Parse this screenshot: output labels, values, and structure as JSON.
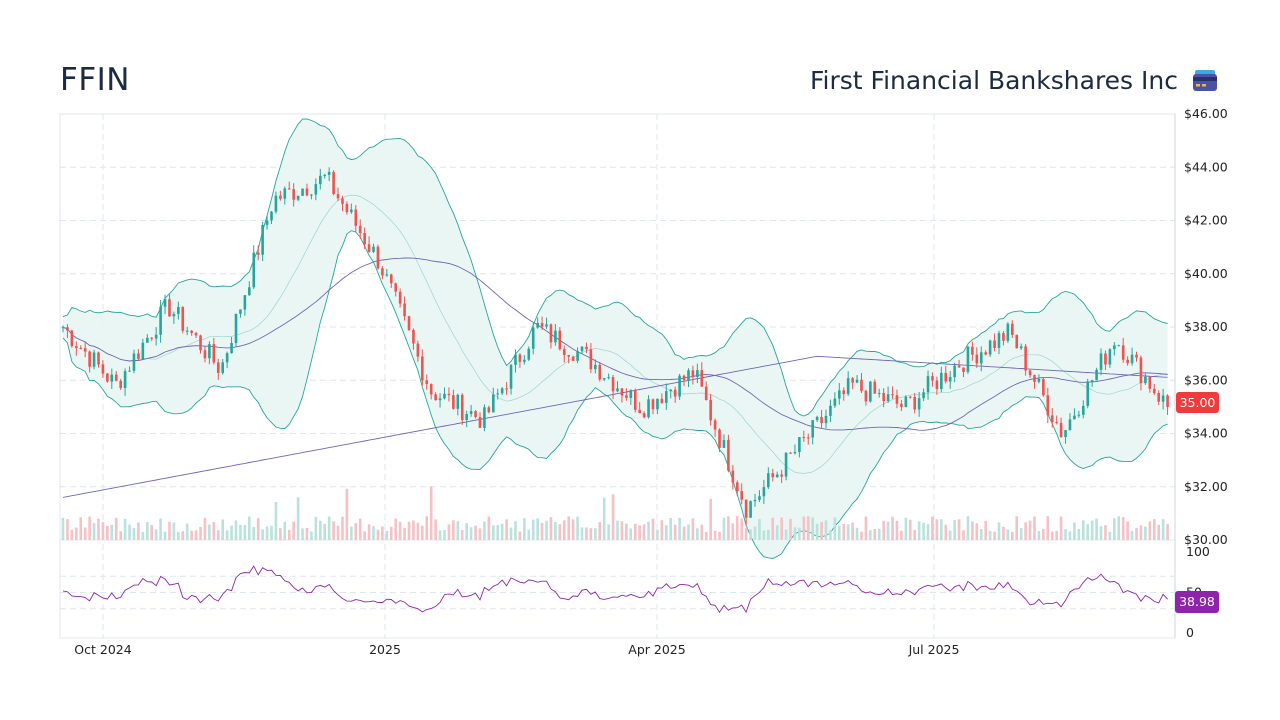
{
  "header": {
    "ticker": "FFIN",
    "company": "First Financial Bankshares Inc",
    "logo_icon": "credit-card-icon"
  },
  "colors": {
    "up": "#26a69a",
    "down": "#ef5350",
    "band_fill": "#e8f5f3",
    "band_line": "#26a69a",
    "ma_line": "#6f66b8",
    "rsi_line": "#8e24aa",
    "last_price_badge": "#ef3b3b",
    "rsi_badge": "#8e24aa"
  },
  "chart_data": [
    {
      "type": "candlestick",
      "title": "",
      "x_tick_labels": [
        "Oct 2024",
        "2025",
        "Apr 2025",
        "Jul 2025"
      ],
      "y_tick_labels": [
        "$46.00",
        "$44.00",
        "$42.00",
        "$40.00",
        "$38.00",
        "$36.00",
        "$34.00",
        "$32.00",
        "$30.00"
      ],
      "ylim": [
        30,
        46
      ],
      "grid": true,
      "last_price": "35.00",
      "series_summary": [
        {
          "date": "2024-09",
          "close": 38.0
        },
        {
          "date": "2024-10",
          "close": 35.8
        },
        {
          "date": "2024-10-15",
          "close": 38.8
        },
        {
          "date": "2024-10-25",
          "close": 36.4
        },
        {
          "date": "2024-11-06",
          "close": 42.8
        },
        {
          "date": "2024-11-25",
          "close": 43.6
        },
        {
          "date": "2024-12-10",
          "close": 40.5
        },
        {
          "date": "2024-12-20",
          "close": 35.6
        },
        {
          "date": "2025-01-10",
          "close": 34.5
        },
        {
          "date": "2025-01-31",
          "close": 38.0
        },
        {
          "date": "2025-02-20",
          "close": 36.8
        },
        {
          "date": "2025-03-10",
          "close": 35.0
        },
        {
          "date": "2025-03-28",
          "close": 36.3
        },
        {
          "date": "2025-04-08",
          "close": 31.2
        },
        {
          "date": "2025-04-25",
          "close": 33.5
        },
        {
          "date": "2025-05-15",
          "close": 35.8
        },
        {
          "date": "2025-06-05",
          "close": 35.0
        },
        {
          "date": "2025-06-25",
          "close": 36.6
        },
        {
          "date": "2025-07-15",
          "close": 37.8
        },
        {
          "date": "2025-08-05",
          "close": 34.0
        },
        {
          "date": "2025-08-20",
          "close": 37.6
        },
        {
          "date": "2025-09-05",
          "close": 35.0
        }
      ],
      "overlays": [
        "Bollinger Bands",
        "Moving Average (50)",
        "Moving Average (200)"
      ],
      "volume": true
    },
    {
      "type": "line",
      "name": "RSI",
      "y_tick_labels": [
        "100",
        "50",
        "0"
      ],
      "ylim": [
        0,
        100
      ],
      "last_value": "38.98"
    }
  ]
}
